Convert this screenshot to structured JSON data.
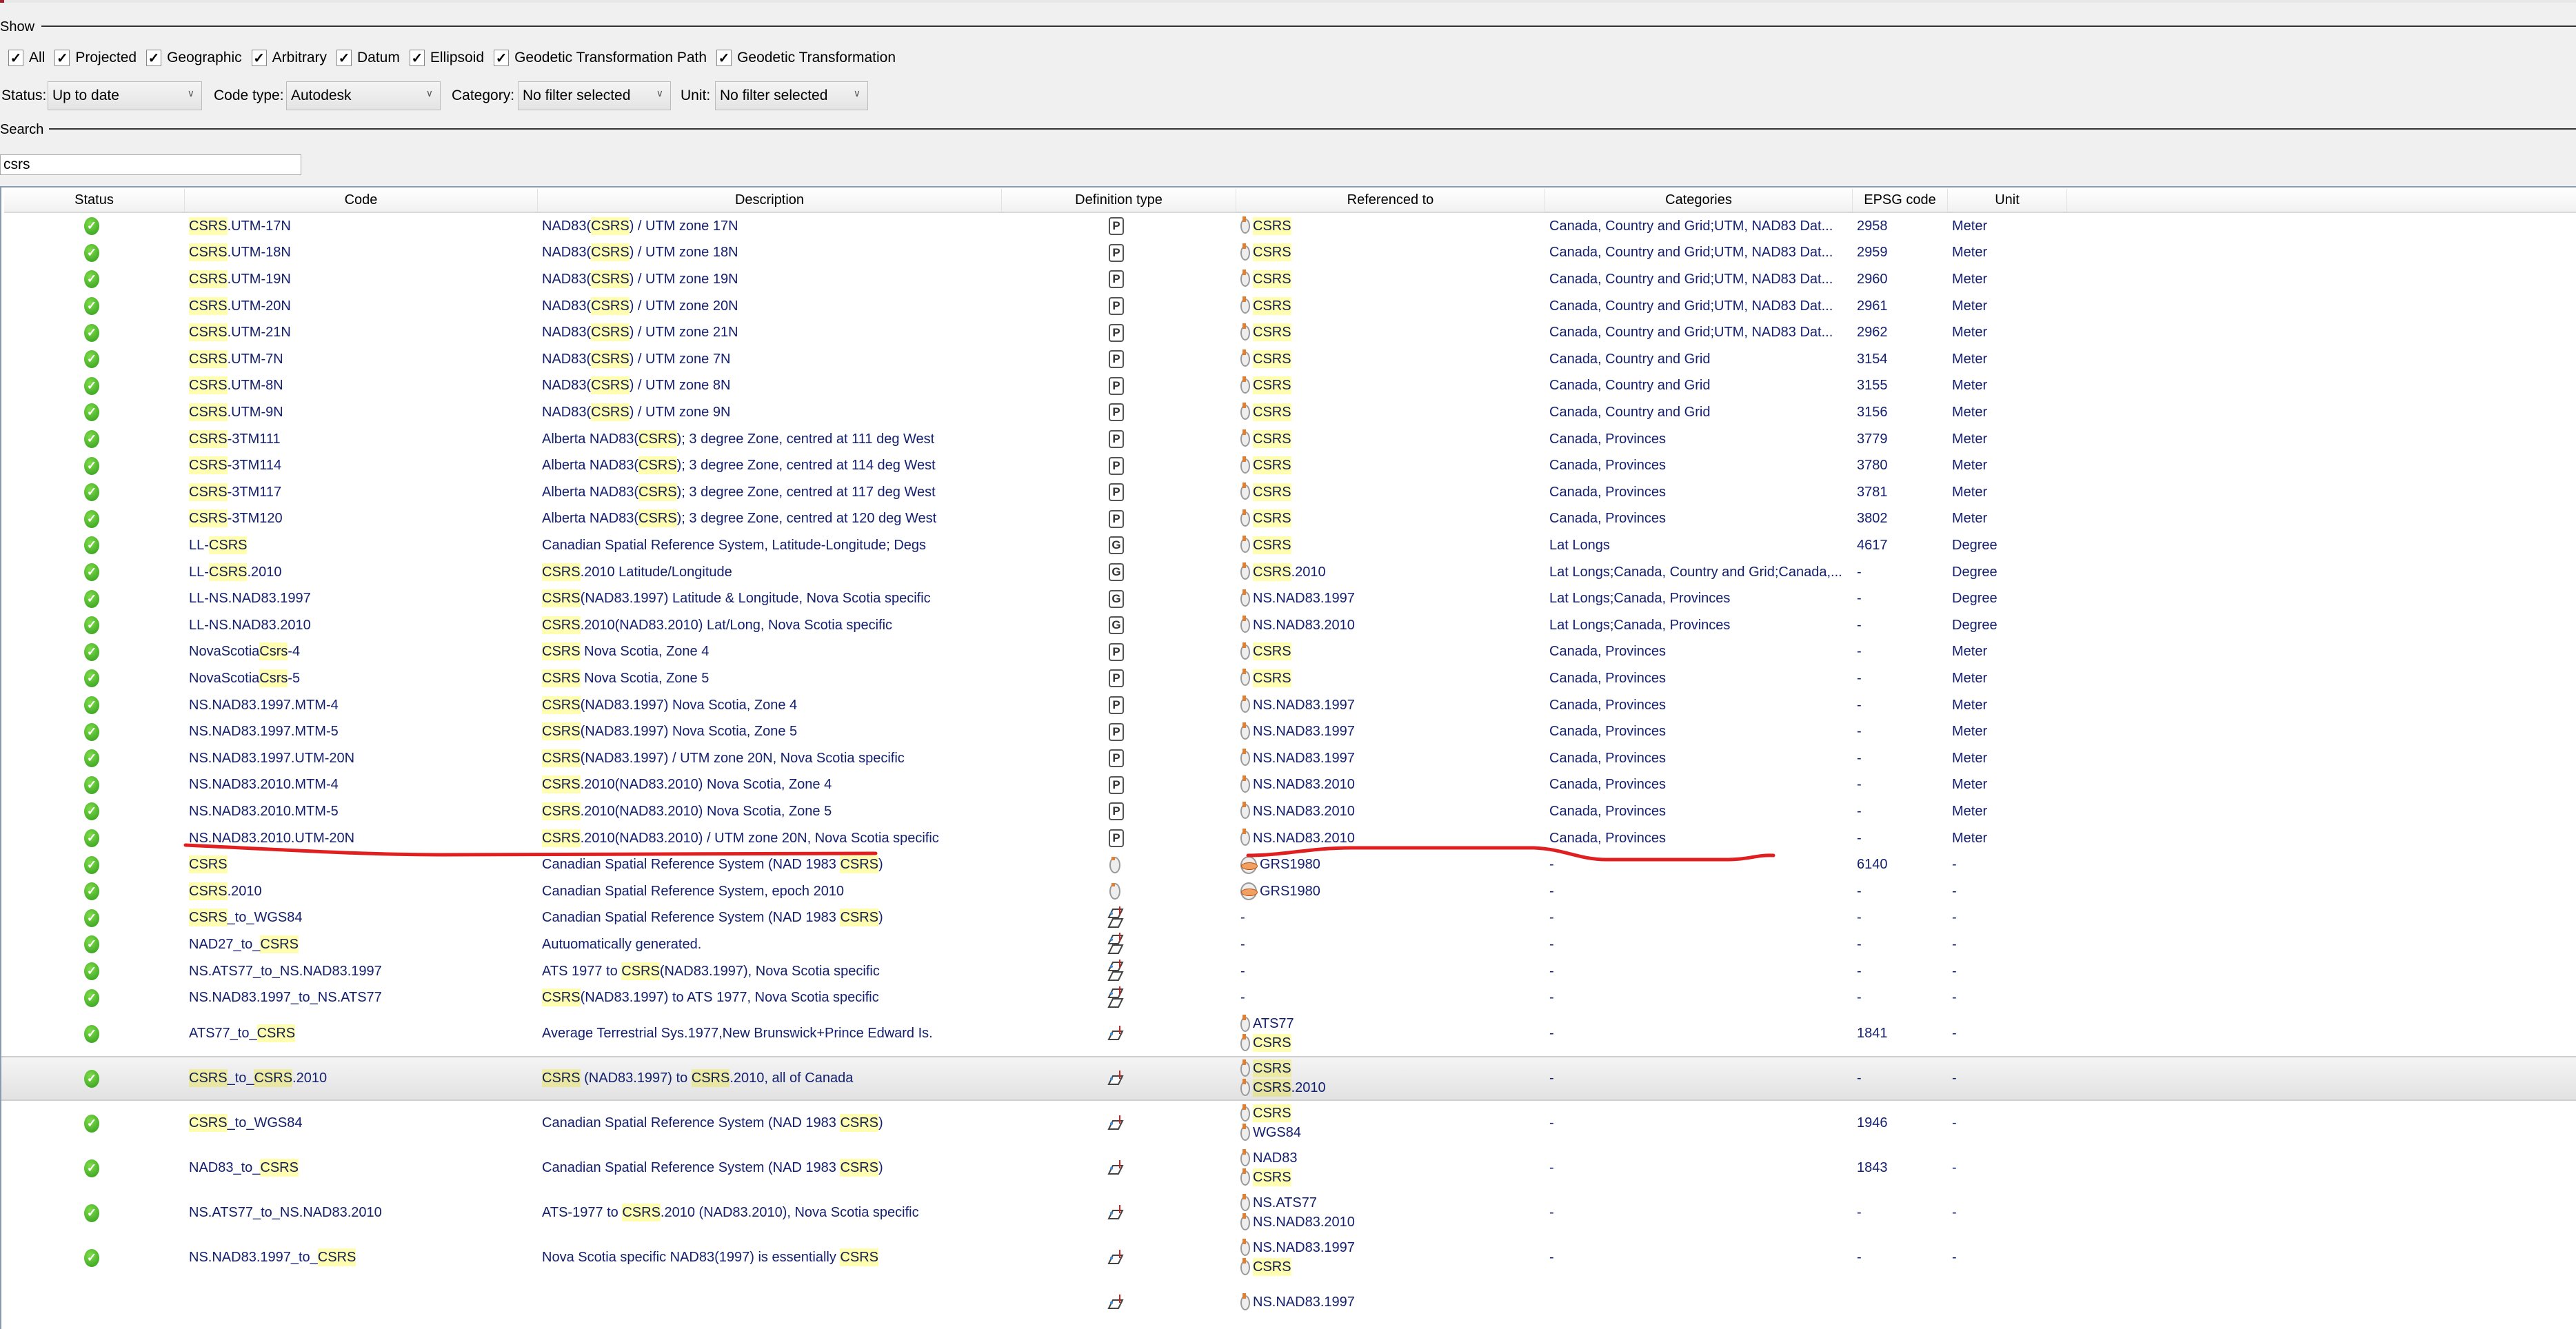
{
  "show": {
    "label": "Show",
    "checkboxes": [
      {
        "label": "All",
        "checked": true
      },
      {
        "label": "Projected",
        "checked": true
      },
      {
        "label": "Geographic",
        "checked": true
      },
      {
        "label": "Arbitrary",
        "checked": true
      },
      {
        "label": "Datum",
        "checked": true
      },
      {
        "label": "Ellipsoid",
        "checked": true
      },
      {
        "label": "Geodetic Transformation Path",
        "checked": true
      },
      {
        "label": "Geodetic Transformation",
        "checked": true
      }
    ],
    "check_mark": "✓"
  },
  "filters": {
    "status_label": "Status:",
    "status_value": "Up to date",
    "code_type_label": "Code type:",
    "code_type_value": "Autodesk",
    "category_label": "Category:",
    "category_value": "No filter selected",
    "unit_label": "Unit:",
    "unit_value": "No filter selected"
  },
  "search": {
    "label": "Search",
    "value": "csrs"
  },
  "highlight_color": "#fffdb0",
  "table": {
    "headers": [
      "Status",
      "Code",
      "Description",
      "Definition type",
      "Referenced to",
      "Categories",
      "EPSG code",
      "Unit"
    ],
    "rows": [
      {
        "code": "CSRS.UTM-17N",
        "desc": "NAD83(CSRS) / UTM zone 17N",
        "type": "P",
        "refs": [
          "CSRS"
        ],
        "cat": "Canada, Country and Grid;UTM, NAD83 Dat...",
        "epsg": "2958",
        "unit": "Meter"
      },
      {
        "code": "CSRS.UTM-18N",
        "desc": "NAD83(CSRS) / UTM zone 18N",
        "type": "P",
        "refs": [
          "CSRS"
        ],
        "cat": "Canada, Country and Grid;UTM, NAD83 Dat...",
        "epsg": "2959",
        "unit": "Meter"
      },
      {
        "code": "CSRS.UTM-19N",
        "desc": "NAD83(CSRS) / UTM zone 19N",
        "type": "P",
        "refs": [
          "CSRS"
        ],
        "cat": "Canada, Country and Grid;UTM, NAD83 Dat...",
        "epsg": "2960",
        "unit": "Meter"
      },
      {
        "code": "CSRS.UTM-20N",
        "desc": "NAD83(CSRS) / UTM zone 20N",
        "type": "P",
        "refs": [
          "CSRS"
        ],
        "cat": "Canada, Country and Grid;UTM, NAD83 Dat...",
        "epsg": "2961",
        "unit": "Meter"
      },
      {
        "code": "CSRS.UTM-21N",
        "desc": "NAD83(CSRS) / UTM zone 21N",
        "type": "P",
        "refs": [
          "CSRS"
        ],
        "cat": "Canada, Country and Grid;UTM, NAD83 Dat...",
        "epsg": "2962",
        "unit": "Meter"
      },
      {
        "code": "CSRS.UTM-7N",
        "desc": "NAD83(CSRS) / UTM zone 7N",
        "type": "P",
        "refs": [
          "CSRS"
        ],
        "cat": "Canada, Country and Grid",
        "epsg": "3154",
        "unit": "Meter"
      },
      {
        "code": "CSRS.UTM-8N",
        "desc": "NAD83(CSRS) / UTM zone 8N",
        "type": "P",
        "refs": [
          "CSRS"
        ],
        "cat": "Canada, Country and Grid",
        "epsg": "3155",
        "unit": "Meter"
      },
      {
        "code": "CSRS.UTM-9N",
        "desc": "NAD83(CSRS) / UTM zone 9N",
        "type": "P",
        "refs": [
          "CSRS"
        ],
        "cat": "Canada, Country and Grid",
        "epsg": "3156",
        "unit": "Meter"
      },
      {
        "code": "CSRS-3TM111",
        "desc": "Alberta NAD83(CSRS); 3 degree Zone, centred at 111 deg West",
        "type": "P",
        "refs": [
          "CSRS"
        ],
        "cat": "Canada, Provinces",
        "epsg": "3779",
        "unit": "Meter"
      },
      {
        "code": "CSRS-3TM114",
        "desc": "Alberta NAD83(CSRS); 3 degree Zone, centred at 114 deg West",
        "type": "P",
        "refs": [
          "CSRS"
        ],
        "cat": "Canada, Provinces",
        "epsg": "3780",
        "unit": "Meter"
      },
      {
        "code": "CSRS-3TM117",
        "desc": "Alberta NAD83(CSRS); 3 degree Zone, centred at 117 deg West",
        "type": "P",
        "refs": [
          "CSRS"
        ],
        "cat": "Canada, Provinces",
        "epsg": "3781",
        "unit": "Meter"
      },
      {
        "code": "CSRS-3TM120",
        "desc": "Alberta NAD83(CSRS); 3 degree Zone, centred at 120 deg West",
        "type": "P",
        "refs": [
          "CSRS"
        ],
        "cat": "Canada, Provinces",
        "epsg": "3802",
        "unit": "Meter"
      },
      {
        "code": "LL-CSRS",
        "desc": "Canadian Spatial Reference System, Latitude-Longitude; Degs",
        "type": "G",
        "refs": [
          "CSRS"
        ],
        "cat": "Lat Longs",
        "epsg": "4617",
        "unit": "Degree"
      },
      {
        "code": "LL-CSRS.2010",
        "desc": "CSRS.2010 Latitude/Longitude",
        "type": "G",
        "refs": [
          "CSRS.2010"
        ],
        "cat": "Lat Longs;Canada, Country and Grid;Canada,...",
        "epsg": "-",
        "unit": "Degree"
      },
      {
        "code": "LL-NS.NAD83.1997",
        "desc": "CSRS(NAD83.1997) Latitude & Longitude, Nova Scotia specific",
        "type": "G",
        "refs": [
          "NS.NAD83.1997"
        ],
        "cat": "Lat Longs;Canada, Provinces",
        "epsg": "-",
        "unit": "Degree"
      },
      {
        "code": "LL-NS.NAD83.2010",
        "desc": "CSRS.2010(NAD83.2010) Lat/Long, Nova Scotia specific",
        "type": "G",
        "refs": [
          "NS.NAD83.2010"
        ],
        "cat": "Lat Longs;Canada, Provinces",
        "epsg": "-",
        "unit": "Degree"
      },
      {
        "code": "NovaScotiaCsrs-4",
        "desc": "CSRS Nova Scotia, Zone 4",
        "type": "P",
        "refs": [
          "CSRS"
        ],
        "cat": "Canada, Provinces",
        "epsg": "-",
        "unit": "Meter"
      },
      {
        "code": "NovaScotiaCsrs-5",
        "desc": "CSRS Nova Scotia, Zone 5",
        "type": "P",
        "refs": [
          "CSRS"
        ],
        "cat": "Canada, Provinces",
        "epsg": "-",
        "unit": "Meter"
      },
      {
        "code": "NS.NAD83.1997.MTM-4",
        "desc": "CSRS(NAD83.1997) Nova Scotia, Zone 4",
        "type": "P",
        "refs": [
          "NS.NAD83.1997"
        ],
        "cat": "Canada, Provinces",
        "epsg": "-",
        "unit": "Meter"
      },
      {
        "code": "NS.NAD83.1997.MTM-5",
        "desc": "CSRS(NAD83.1997) Nova Scotia, Zone 5",
        "type": "P",
        "refs": [
          "NS.NAD83.1997"
        ],
        "cat": "Canada, Provinces",
        "epsg": "-",
        "unit": "Meter"
      },
      {
        "code": "NS.NAD83.1997.UTM-20N",
        "desc": "CSRS(NAD83.1997) / UTM zone 20N, Nova Scotia specific",
        "type": "P",
        "refs": [
          "NS.NAD83.1997"
        ],
        "cat": "Canada, Provinces",
        "epsg": "-",
        "unit": "Meter"
      },
      {
        "code": "NS.NAD83.2010.MTM-4",
        "desc": "CSRS.2010(NAD83.2010) Nova Scotia, Zone 4",
        "type": "P",
        "refs": [
          "NS.NAD83.2010"
        ],
        "cat": "Canada, Provinces",
        "epsg": "-",
        "unit": "Meter"
      },
      {
        "code": "NS.NAD83.2010.MTM-5",
        "desc": "CSRS.2010(NAD83.2010) Nova Scotia, Zone 5",
        "type": "P",
        "refs": [
          "NS.NAD83.2010"
        ],
        "cat": "Canada, Provinces",
        "epsg": "-",
        "unit": "Meter"
      },
      {
        "code": "NS.NAD83.2010.UTM-20N",
        "desc": "CSRS.2010(NAD83.2010) / UTM zone 20N, Nova Scotia specific",
        "type": "P",
        "refs": [
          "NS.NAD83.2010"
        ],
        "cat": "Canada, Provinces",
        "epsg": "-",
        "unit": "Meter"
      },
      {
        "code": "CSRS",
        "desc": "Canadian Spatial Reference System (NAD 1983 CSRS)",
        "type": "datum",
        "refs": [
          "GRS1980"
        ],
        "ref_icon": "ellipsoid",
        "cat": "-",
        "epsg": "6140",
        "unit": "-"
      },
      {
        "code": "CSRS.2010",
        "desc": "Canadian Spatial Reference System, epoch 2010",
        "type": "datum",
        "refs": [
          "GRS1980"
        ],
        "ref_icon": "ellipsoid",
        "cat": "-",
        "epsg": "-",
        "unit": "-"
      },
      {
        "code": "CSRS_to_WGS84",
        "desc": "Canadian Spatial Reference System (NAD 1983 CSRS)",
        "type": "transformation",
        "refs": [
          "-"
        ],
        "cat": "-",
        "epsg": "-",
        "unit": "-"
      },
      {
        "code": "NAD27_to_CSRS",
        "desc": "Autuomatically generated.",
        "type": "transformation",
        "refs": [
          "-"
        ],
        "cat": "-",
        "epsg": "-",
        "unit": "-"
      },
      {
        "code": "NS.ATS77_to_NS.NAD83.1997",
        "desc": "ATS 1977 to CSRS(NAD83.1997), Nova Scotia specific",
        "type": "transformation",
        "refs": [
          "-"
        ],
        "cat": "-",
        "epsg": "-",
        "unit": "-"
      },
      {
        "code": "NS.NAD83.1997_to_NS.ATS77",
        "desc": "CSRS(NAD83.1997) to ATS 1977, Nova Scotia specific",
        "type": "transformation",
        "refs": [
          "-"
        ],
        "cat": "-",
        "epsg": "-",
        "unit": "-"
      },
      {
        "code": "ATS77_to_CSRS",
        "desc": "Average Terrestrial Sys.1977,New Brunswick+Prince Edward Is.",
        "type": "path",
        "refs": [
          "ATS77",
          "CSRS"
        ],
        "cat": "-",
        "epsg": "1841",
        "unit": "-"
      },
      {
        "code": "CSRS_to_CSRS.2010",
        "desc": "CSRS (NAD83.1997) to CSRS.2010, all of Canada",
        "type": "path",
        "refs": [
          "CSRS",
          "CSRS.2010"
        ],
        "cat": "-",
        "epsg": "-",
        "unit": "-",
        "selected": true
      },
      {
        "code": "CSRS_to_WGS84",
        "desc": "Canadian Spatial Reference System (NAD 1983 CSRS)",
        "type": "path",
        "refs": [
          "CSRS",
          "WGS84"
        ],
        "cat": "-",
        "epsg": "1946",
        "unit": "-"
      },
      {
        "code": "NAD83_to_CSRS",
        "desc": "Canadian Spatial Reference System (NAD 1983 CSRS)",
        "type": "path",
        "refs": [
          "NAD83",
          "CSRS"
        ],
        "cat": "-",
        "epsg": "1843",
        "unit": "-"
      },
      {
        "code": "NS.ATS77_to_NS.NAD83.2010",
        "desc": "ATS-1977 to CSRS.2010 (NAD83.2010), Nova Scotia specific",
        "type": "path",
        "refs": [
          "NS.ATS77",
          "NS.NAD83.2010"
        ],
        "cat": "-",
        "epsg": "-",
        "unit": "-"
      },
      {
        "code": "NS.NAD83.1997_to_CSRS",
        "desc": "Nova Scotia specific NAD83(1997) is essentially CSRS",
        "type": "path",
        "refs": [
          "NS.NAD83.1997",
          "CSRS"
        ],
        "cat": "-",
        "epsg": "-",
        "unit": "-"
      },
      {
        "code": "",
        "desc": "",
        "type": "path",
        "refs": [
          "NS.NAD83.1997"
        ],
        "cat": "",
        "epsg": "",
        "unit": ""
      }
    ]
  },
  "annotation_color": "#e02020"
}
